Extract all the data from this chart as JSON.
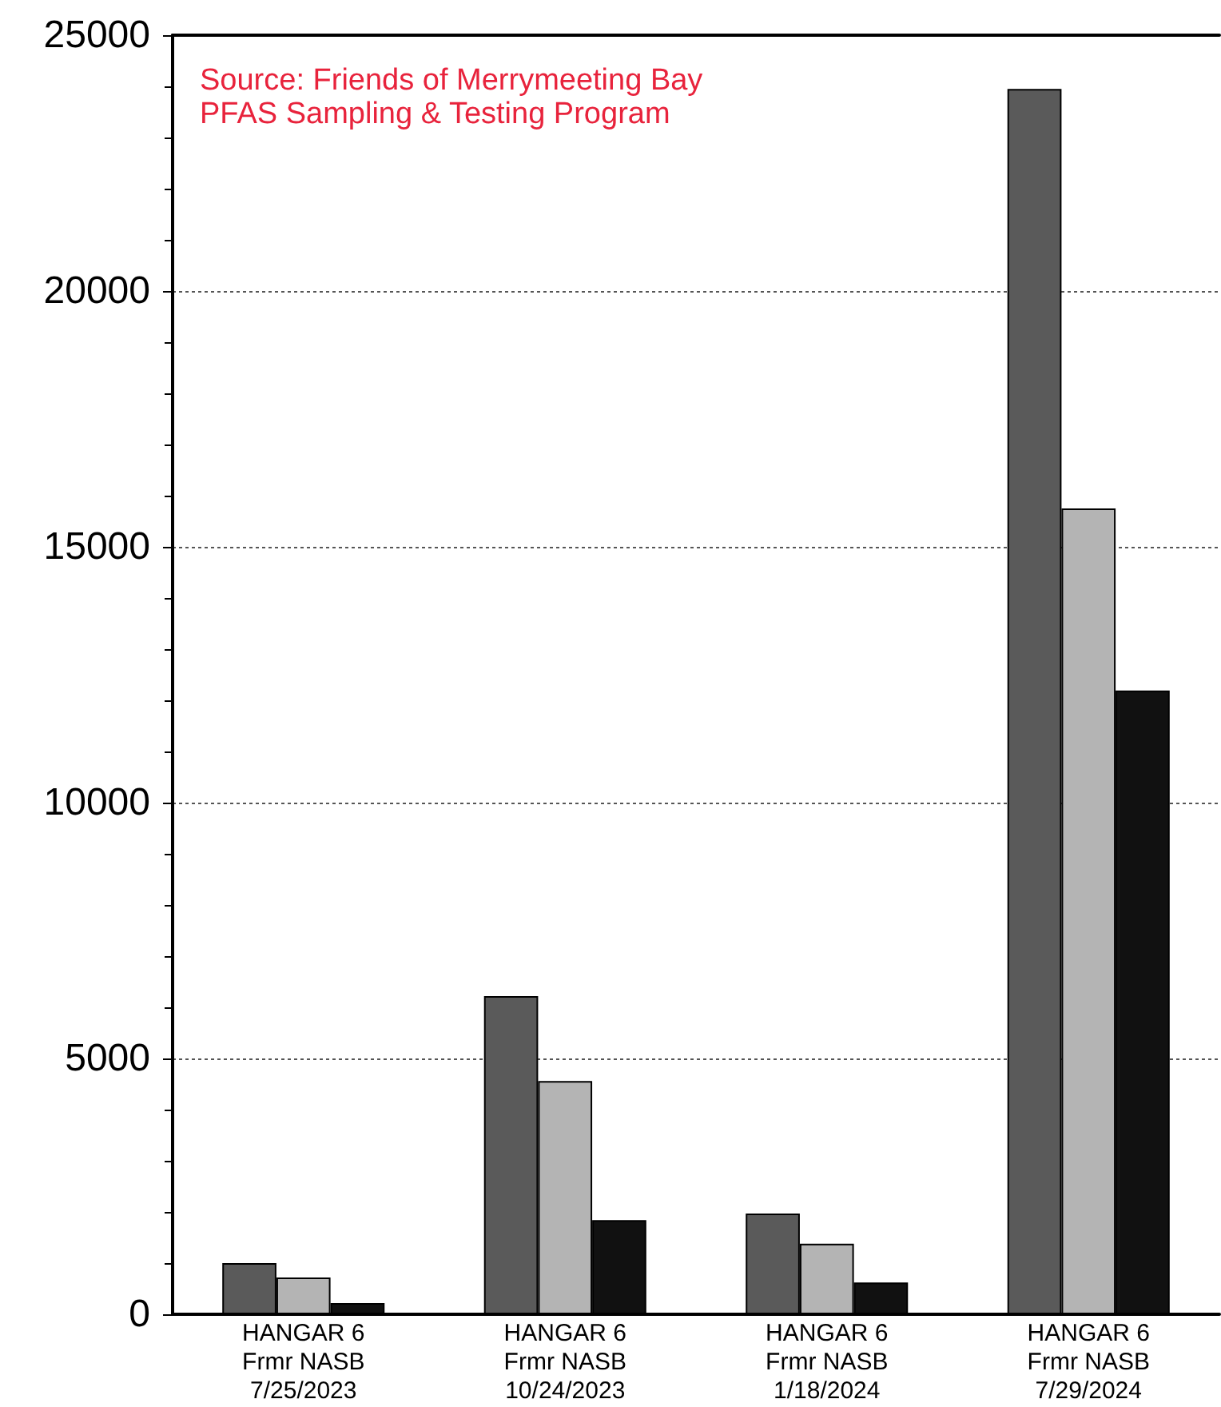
{
  "chart_data": {
    "type": "bar",
    "categories": [
      "HANGAR 6\nFrmr NASB\n7/25/2023",
      "HANGAR 6\nFrmr NASB\n10/24/2023",
      "HANGAR 6\nFrmr NASB\n1/18/2024",
      "HANGAR 6\nFrmr NASB\n7/29/2024"
    ],
    "series": [
      {
        "color": "#5a5a5a",
        "values": [
          1000,
          6220,
          1970,
          23950
        ]
      },
      {
        "color": "#b4b4b4",
        "values": [
          720,
          4560,
          1380,
          15750
        ]
      },
      {
        "color": "#111111",
        "values": [
          220,
          1840,
          620,
          12190
        ]
      }
    ],
    "ylim": [
      0,
      25000
    ],
    "yticks": [
      0,
      5000,
      10000,
      15000,
      20000,
      25000
    ],
    "grid": "y",
    "annotations": [
      "Source: Friends of Merrymeeting Bay\nPFAS Sampling & Testing Program"
    ]
  }
}
